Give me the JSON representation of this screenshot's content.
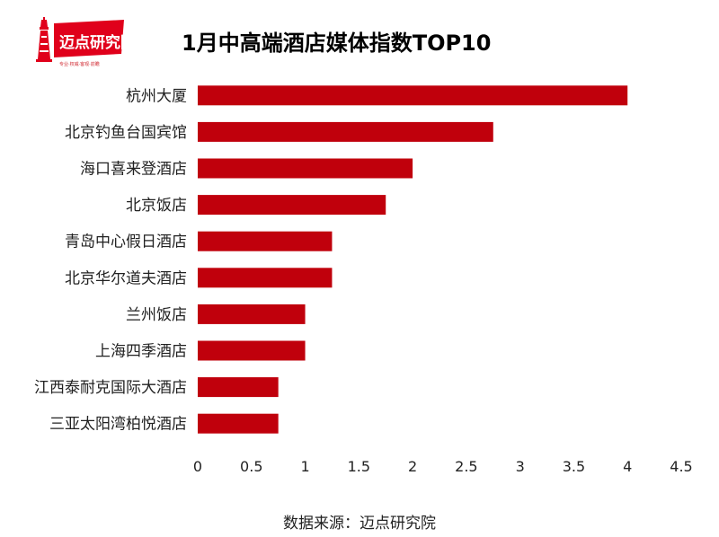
{
  "logo": {
    "brand": "迈点研究院",
    "slogan": "专业·权威·客观·前瞻",
    "brand_color": "#e0001b"
  },
  "header": {
    "title": "1月中高端酒店媒体指数TOP10"
  },
  "source": {
    "label": "数据来源：",
    "value": "迈点研究院"
  },
  "chart_data": {
    "type": "bar",
    "orientation": "horizontal",
    "title": "1月中高端酒店媒体指数TOP10",
    "xlabel": "",
    "ylabel": "",
    "categories": [
      "杭州大厦",
      "北京钓鱼台国宾馆",
      "海口喜来登酒店",
      "北京饭店",
      "青岛中心假日酒店",
      "北京华尔道夫酒店",
      "兰州饭店",
      "上海四季酒店",
      "江西泰耐克国际大酒店",
      "三亚太阳湾柏悦酒店"
    ],
    "values": [
      4,
      2.75,
      2,
      1.75,
      1.25,
      1.25,
      1,
      1,
      0.75,
      0.75
    ],
    "xlim": [
      0,
      4.5
    ],
    "xticks": [
      "0",
      "0.5",
      "1",
      "1.5",
      "2",
      "2.5",
      "3",
      "3.5",
      "4",
      "4.5"
    ],
    "bar_color": "#c0000c",
    "grid": false,
    "legend": "none"
  }
}
